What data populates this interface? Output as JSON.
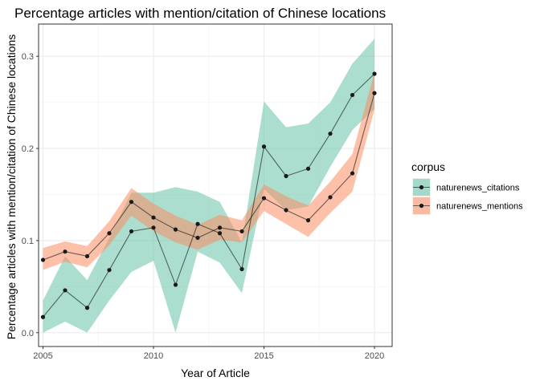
{
  "chart_data": {
    "type": "line",
    "title": "Percentage articles with mention/citation of Chinese locations",
    "xlabel": "Year of Article",
    "ylabel": "Percentage articles with mention/citation of Chinese locations",
    "xlim": [
      2004.8,
      2020.8
    ],
    "ylim": [
      -0.015,
      0.335
    ],
    "x_ticks": [
      2005,
      2010,
      2015,
      2020
    ],
    "y_ticks": [
      0.0,
      0.1,
      0.2,
      0.3
    ],
    "x_tick_labels": [
      "2005",
      "2010",
      "2015",
      "2020"
    ],
    "y_tick_labels": [
      "0.0",
      "0.1",
      "0.2",
      "0.3"
    ],
    "grid": true,
    "legend": {
      "title": "corpus",
      "position": "right"
    },
    "x": [
      2005,
      2006,
      2007,
      2008,
      2009,
      2010,
      2011,
      2012,
      2013,
      2014,
      2015,
      2016,
      2017,
      2018,
      2019,
      2020
    ],
    "series": [
      {
        "name": "naturenews_citations",
        "color": "#66c2a5",
        "values": [
          0.017,
          0.046,
          0.027,
          0.068,
          0.11,
          0.114,
          0.052,
          0.118,
          0.108,
          0.069,
          0.202,
          0.17,
          0.178,
          0.216,
          0.258,
          0.281
        ],
        "lower": [
          0.0,
          0.012,
          0.0,
          0.035,
          0.066,
          0.078,
          0.0,
          0.088,
          0.076,
          0.043,
          0.156,
          0.133,
          0.137,
          0.18,
          0.22,
          0.243
        ],
        "upper": [
          0.035,
          0.083,
          0.057,
          0.103,
          0.152,
          0.152,
          0.158,
          0.153,
          0.142,
          0.098,
          0.251,
          0.223,
          0.227,
          0.25,
          0.292,
          0.319
        ]
      },
      {
        "name": "naturenews_mentions",
        "color": "#fc8d62",
        "values": [
          0.079,
          0.088,
          0.083,
          0.108,
          0.142,
          0.125,
          0.112,
          0.103,
          0.114,
          0.11,
          0.146,
          0.133,
          0.122,
          0.147,
          0.173,
          0.26
        ],
        "lower": [
          0.068,
          0.077,
          0.071,
          0.095,
          0.127,
          0.11,
          0.098,
          0.09,
          0.101,
          0.098,
          0.132,
          0.118,
          0.104,
          0.13,
          0.153,
          0.242
        ],
        "upper": [
          0.092,
          0.099,
          0.094,
          0.121,
          0.157,
          0.14,
          0.127,
          0.117,
          0.128,
          0.122,
          0.161,
          0.148,
          0.138,
          0.164,
          0.194,
          0.283
        ]
      }
    ]
  }
}
